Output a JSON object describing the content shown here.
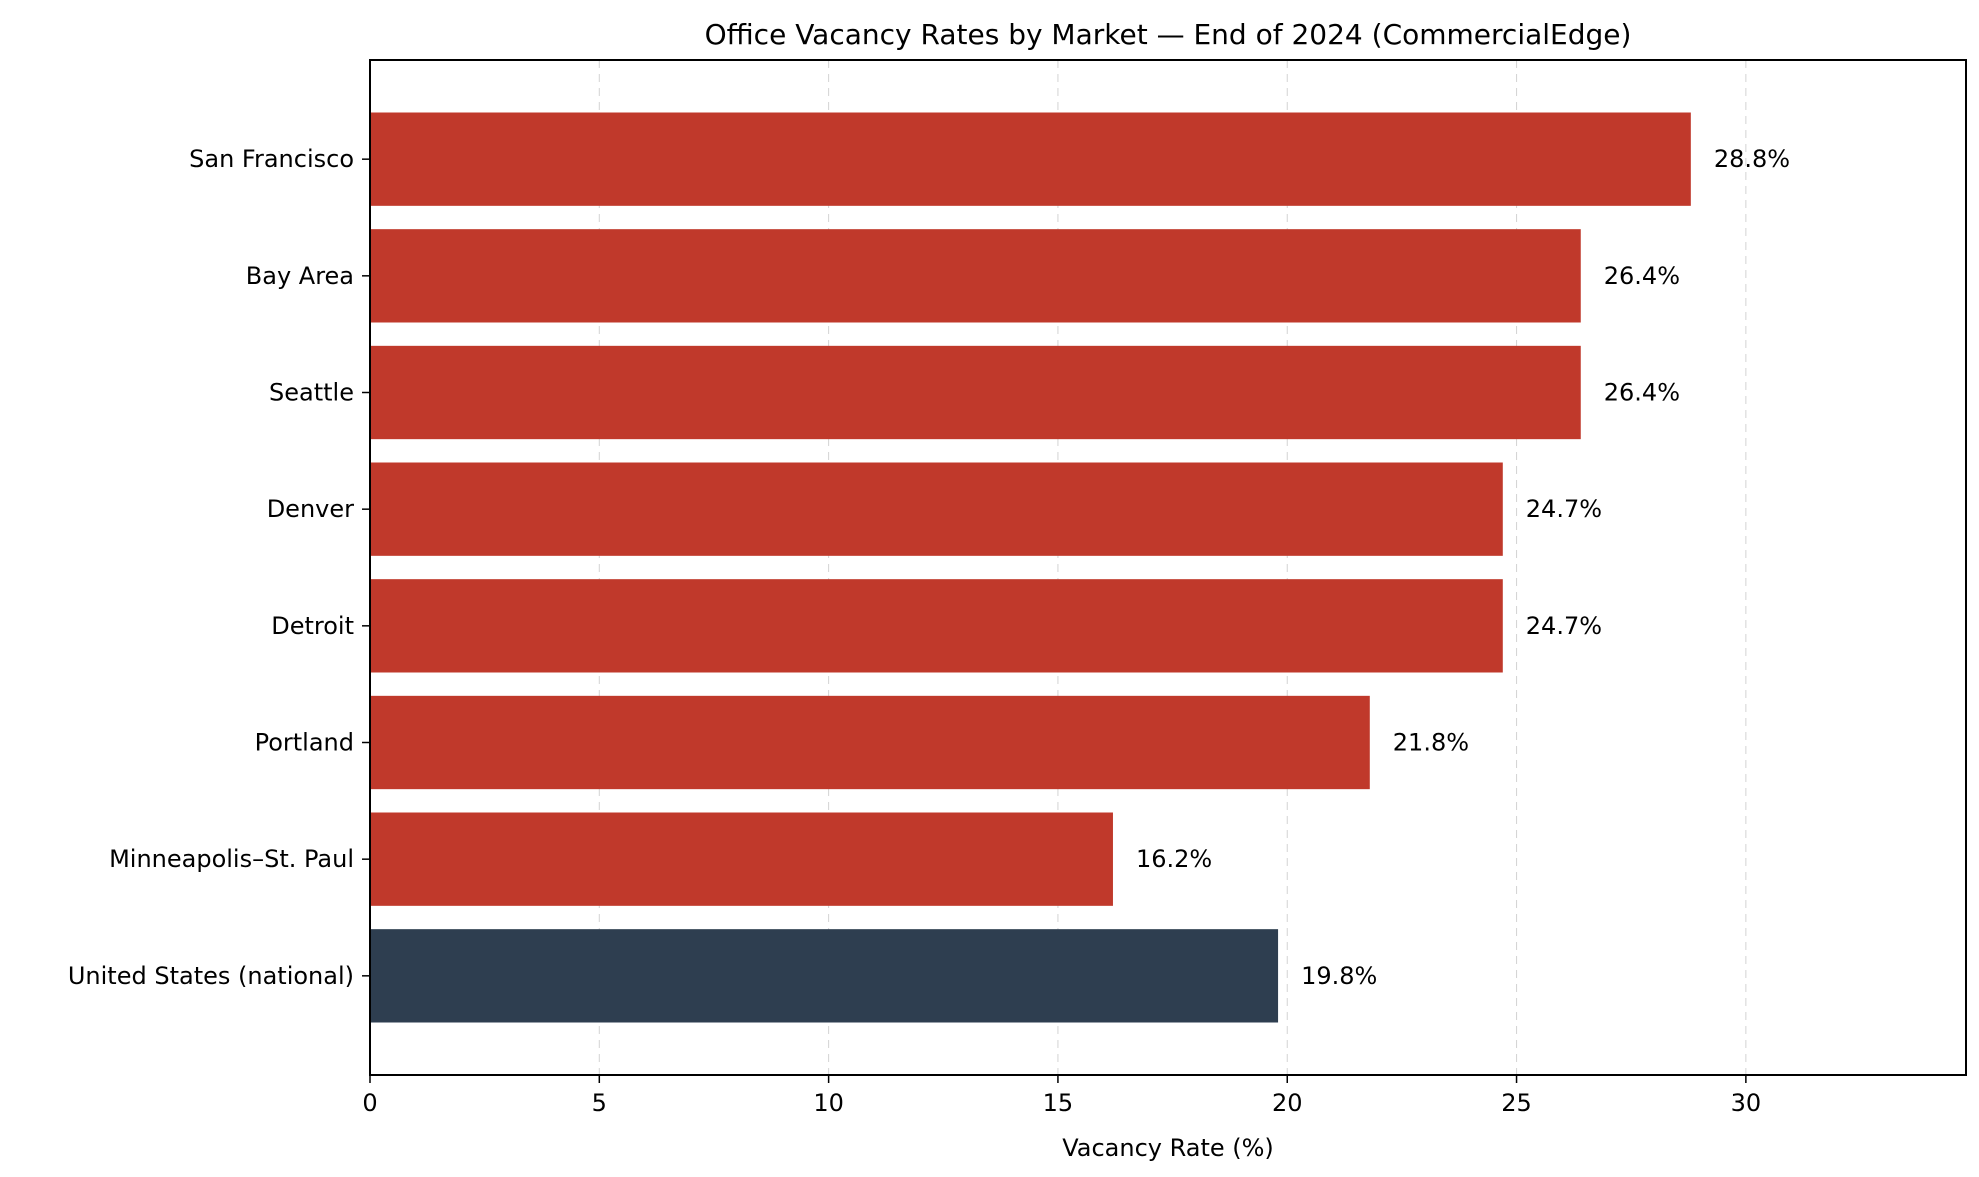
{
  "chart_data": {
    "type": "bar",
    "orientation": "horizontal",
    "title": "Office Vacancy Rates by Market — End of 2024 (CommercialEdge)",
    "xlabel": "Vacancy Rate (%)",
    "ylabel": "",
    "xlim": [
      0,
      34.8
    ],
    "xticks": [
      0,
      5,
      10,
      15,
      20,
      25,
      30
    ],
    "grid": "x-dashed",
    "categories": [
      "San Francisco",
      "Bay Area",
      "Seattle",
      "Denver",
      "Detroit",
      "Portland",
      "Minneapolis–St. Paul",
      "United States (national)"
    ],
    "values": [
      28.8,
      26.4,
      26.4,
      24.7,
      24.7,
      21.8,
      16.2,
      19.8
    ],
    "value_labels": [
      "28.8%",
      "26.4%",
      "26.4%",
      "24.7%",
      "24.7%",
      "21.8%",
      "16.2%",
      "19.8%"
    ],
    "colors": [
      "#c0392b",
      "#c0392b",
      "#c0392b",
      "#c0392b",
      "#c0392b",
      "#c0392b",
      "#c0392b",
      "#2e3e50"
    ]
  }
}
